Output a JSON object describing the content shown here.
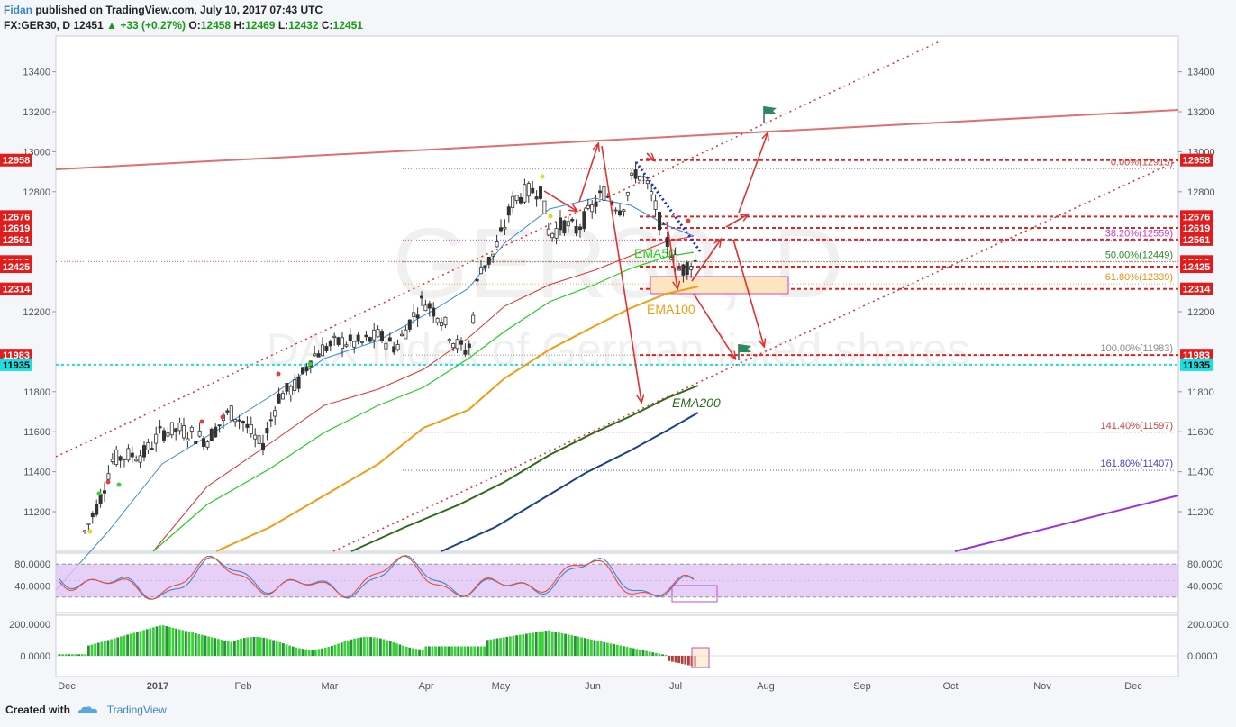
{
  "header": {
    "user": "Fidan",
    "published": "published on TradingView.com, July 10, 2017 07:43 UTC",
    "symbol": "FX:GER30, D",
    "last": "12451",
    "change": "+33 (+0.27%)",
    "o_label": "O:",
    "o": "12458",
    "h_label": "H:",
    "h": "12469",
    "l_label": "L:",
    "l": "12432",
    "c_label": "C:",
    "c": "12451"
  },
  "footer": {
    "created": "Created with",
    "brand": "TradingView"
  },
  "watermark": {
    "symbol": "GER30, D",
    "desc": "DAX index of German listed shares"
  },
  "colors": {
    "ema20": "#3a8ad8",
    "ema50": "#1fd11f",
    "ema100": "#f39c12",
    "ema200": "#2e6b1e",
    "ema_extra": "#1f3f8a",
    "red_line": "#e03030",
    "trend": "#e07070",
    "stoch_band": "#e1c4f5",
    "stoch_k": "#3a86c8",
    "stoch_d": "#e84d3b",
    "hist_pos": "#39d339",
    "hist_neg": "#b04040",
    "level_red": "#e02424",
    "cyan": "#19e0e0",
    "fib_purple": "#c838c8",
    "fib_green": "#2a8a2a",
    "fib_orange": "#e69212",
    "fib_gray": "#888888",
    "fib_red": "#d04040",
    "fib_blue": "#4040c0"
  },
  "chart_data": {
    "type": "candlestick",
    "title": "FX:GER30, D",
    "ylim": [
      11050,
      13550
    ],
    "y_ticks": [
      "13400",
      "13200",
      "13000",
      "12800",
      "12200",
      "11800",
      "11600",
      "11400",
      "11200"
    ],
    "x_ticks": [
      "Dec",
      "2017",
      "Feb",
      "Mar",
      "Apr",
      "May",
      "Jun",
      "Jul",
      "Aug",
      "Sep",
      "Oct",
      "Nov",
      "Dec"
    ],
    "price_tags": [
      {
        "value": "12958",
        "color": "red"
      },
      {
        "value": "12676",
        "color": "red"
      },
      {
        "value": "12619",
        "color": "red"
      },
      {
        "value": "12561",
        "color": "red"
      },
      {
        "value": "12451",
        "color": "red"
      },
      {
        "value": "12425",
        "color": "red"
      },
      {
        "value": "12314",
        "color": "red"
      },
      {
        "value": "11983",
        "color": "red"
      },
      {
        "value": "11935",
        "color": "cyan"
      }
    ],
    "fib_levels": [
      {
        "label": "0.00%(12915)",
        "value": 12915,
        "color": "red"
      },
      {
        "label": "38.20%(12559)",
        "value": 12559,
        "color": "purple"
      },
      {
        "label": "50.00%(12449)",
        "value": 12449,
        "color": "green"
      },
      {
        "label": "61.80%(12339)",
        "value": 12339,
        "color": "orange"
      },
      {
        "label": "100.00%(11983)",
        "value": 11983,
        "color": "gray"
      },
      {
        "label": "141.40%(11597)",
        "value": 11597,
        "color": "red"
      },
      {
        "label": "161.80%(11407)",
        "value": 11407,
        "color": "blue"
      }
    ],
    "ema_labels": [
      "EMA50",
      "EMA100",
      "EMA200"
    ],
    "ema_label_values": [
      12460,
      12225,
      11850
    ],
    "series": [
      {
        "name": "EMA20",
        "x": [
          0.04,
          0.1,
          0.2,
          0.3,
          0.4,
          0.5,
          0.58,
          0.65,
          0.7
        ],
        "values": [
          11050,
          11400,
          11620,
          11950,
          12120,
          12500,
          12720,
          12760,
          12690
        ]
      },
      {
        "name": "EMA50",
        "x": [
          0.1,
          0.2,
          0.3,
          0.4,
          0.5,
          0.58,
          0.65,
          0.7
        ],
        "values": [
          11050,
          11350,
          11660,
          11950,
          12230,
          12440,
          12570,
          12600
        ]
      },
      {
        "name": "EMA100",
        "values": [
          11050,
          11250,
          11500,
          11700,
          11960,
          12180,
          12300,
          12330
        ]
      },
      {
        "name": "EMA200",
        "values": [
          11050,
          11380,
          11570,
          11760,
          11840
        ]
      }
    ],
    "stochastic": {
      "ticks": [
        "80.0000",
        "40.0000"
      ],
      "band": [
        20,
        80
      ]
    },
    "histogram": {
      "ticks": [
        "200.0000",
        "0.0000"
      ]
    }
  }
}
